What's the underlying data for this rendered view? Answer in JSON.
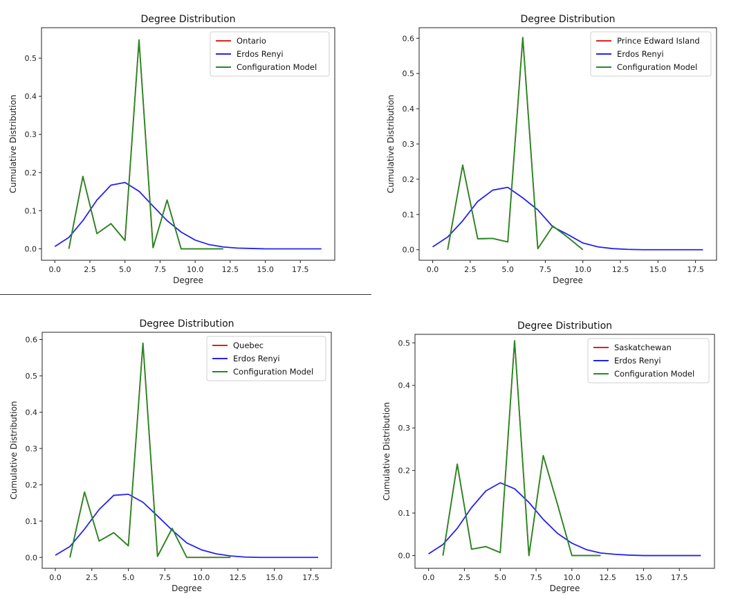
{
  "colors": {
    "province": "#e02020",
    "erdos_renyi": "#2222ee",
    "configuration": "#228b22"
  },
  "chart_data": [
    {
      "type": "line",
      "title": "Degree Distribution",
      "xlabel": "Degree",
      "ylabel": "Cumulative Distribution",
      "xlim": [
        -0.95,
        19.95
      ],
      "ylim": [
        -0.03,
        0.58
      ],
      "xticks": [
        0,
        2.5,
        5,
        7.5,
        10,
        12.5,
        15,
        17.5
      ],
      "xtick_labels": [
        "0.0",
        "2.5",
        "5.0",
        "7.5",
        "10.0",
        "12.5",
        "15.0",
        "17.5"
      ],
      "yticks": [
        0,
        0.1,
        0.2,
        0.3,
        0.4,
        0.5
      ],
      "ytick_labels": [
        "0.0",
        "0.1",
        "0.2",
        "0.3",
        "0.4",
        "0.5"
      ],
      "legend": "top-right",
      "series": [
        {
          "name": "Ontario",
          "color": "#e02020",
          "x": [
            1,
            2,
            3,
            4,
            5,
            6,
            7,
            8,
            9,
            10,
            11,
            12
          ],
          "values": [
            0.0,
            0.19,
            0.04,
            0.066,
            0.022,
            0.548,
            0.003,
            0.128,
            0.0,
            0.0,
            0.0,
            0.0
          ]
        },
        {
          "name": "Erdos Renyi",
          "color": "#2222ee",
          "x": [
            0,
            1,
            2,
            3,
            4,
            5,
            6,
            7,
            8,
            9,
            10,
            11,
            12,
            13,
            14,
            15,
            16,
            17,
            18,
            19
          ],
          "values": [
            0.006,
            0.03,
            0.074,
            0.128,
            0.167,
            0.174,
            0.151,
            0.112,
            0.074,
            0.044,
            0.023,
            0.011,
            0.005,
            0.002,
            0.001,
            0.0,
            0.0,
            0.0,
            0.0,
            0.0
          ]
        },
        {
          "name": "Configuration Model",
          "color": "#228b22",
          "x": [
            1,
            2,
            3,
            4,
            5,
            6,
            7,
            8,
            9,
            10,
            11,
            12
          ],
          "values": [
            0.0,
            0.19,
            0.04,
            0.066,
            0.022,
            0.548,
            0.003,
            0.128,
            0.0,
            0.0,
            0.0,
            0.0
          ]
        }
      ]
    },
    {
      "type": "line",
      "title": "Degree Distribution",
      "xlabel": "Degree",
      "ylabel": "Cumulative Distribution",
      "xlim": [
        -0.9,
        18.9
      ],
      "ylim": [
        -0.03,
        0.63
      ],
      "xticks": [
        0,
        2.5,
        5,
        7.5,
        10,
        12.5,
        15,
        17.5
      ],
      "xtick_labels": [
        "0.0",
        "2.5",
        "5.0",
        "7.5",
        "10.0",
        "12.5",
        "15.0",
        "17.5"
      ],
      "yticks": [
        0,
        0.1,
        0.2,
        0.3,
        0.4,
        0.5,
        0.6
      ],
      "ytick_labels": [
        "0.0",
        "0.1",
        "0.2",
        "0.3",
        "0.4",
        "0.5",
        "0.6"
      ],
      "legend": "top-right",
      "series": [
        {
          "name": "Prince Edward Island",
          "color": "#e02020",
          "x": [
            1,
            2,
            3,
            4,
            5,
            6,
            7,
            8,
            9,
            10
          ],
          "values": [
            0.0,
            0.24,
            0.031,
            0.032,
            0.022,
            0.602,
            0.003,
            0.067,
            0.035,
            0.0
          ]
        },
        {
          "name": "Erdos Renyi",
          "color": "#2222ee",
          "x": [
            0,
            1,
            2,
            3,
            4,
            5,
            6,
            7,
            8,
            9,
            10,
            11,
            12,
            13,
            14,
            15,
            16,
            17,
            18
          ],
          "values": [
            0.008,
            0.036,
            0.082,
            0.137,
            0.169,
            0.177,
            0.147,
            0.113,
            0.065,
            0.043,
            0.019,
            0.008,
            0.003,
            0.001,
            0.0,
            0.0,
            0.0,
            0.0,
            0.0
          ]
        },
        {
          "name": "Configuration Model",
          "color": "#228b22",
          "x": [
            1,
            2,
            3,
            4,
            5,
            6,
            7,
            8,
            9,
            10
          ],
          "values": [
            0.0,
            0.24,
            0.031,
            0.032,
            0.022,
            0.602,
            0.003,
            0.067,
            0.035,
            0.0
          ]
        }
      ]
    },
    {
      "type": "line",
      "title": "Degree Distribution",
      "xlabel": "Degree",
      "ylabel": "Cumulative Distribution",
      "xlim": [
        -0.9,
        18.9
      ],
      "ylim": [
        -0.03,
        0.62
      ],
      "xticks": [
        0,
        2.5,
        5,
        7.5,
        10,
        12.5,
        15,
        17.5
      ],
      "xtick_labels": [
        "0.0",
        "2.5",
        "5.0",
        "7.5",
        "10.0",
        "12.5",
        "15.0",
        "17.5"
      ],
      "yticks": [
        0,
        0.1,
        0.2,
        0.3,
        0.4,
        0.5,
        0.6
      ],
      "ytick_labels": [
        "0.0",
        "0.1",
        "0.2",
        "0.3",
        "0.4",
        "0.5",
        "0.6"
      ],
      "legend": "top-right",
      "series": [
        {
          "name": "Quebec",
          "color": "#e02020",
          "x": [
            1,
            2,
            3,
            4,
            5,
            6,
            7,
            8,
            9,
            10,
            11,
            12
          ],
          "values": [
            0.0,
            0.18,
            0.045,
            0.068,
            0.032,
            0.59,
            0.003,
            0.08,
            0.0,
            0.0,
            0.0,
            0.0
          ]
        },
        {
          "name": "Erdos Renyi",
          "color": "#2222ee",
          "x": [
            0,
            1,
            2,
            3,
            4,
            5,
            6,
            7,
            8,
            9,
            10,
            11,
            12,
            13,
            14,
            15,
            16,
            17,
            18
          ],
          "values": [
            0.006,
            0.03,
            0.078,
            0.132,
            0.171,
            0.174,
            0.152,
            0.114,
            0.075,
            0.04,
            0.021,
            0.01,
            0.004,
            0.001,
            0.0,
            0.0,
            0.0,
            0.0,
            0.0
          ]
        },
        {
          "name": "Configuration Model",
          "color": "#228b22",
          "x": [
            1,
            2,
            3,
            4,
            5,
            6,
            7,
            8,
            9,
            10,
            11,
            12
          ],
          "values": [
            0.0,
            0.18,
            0.045,
            0.068,
            0.032,
            0.59,
            0.003,
            0.08,
            0.0,
            0.0,
            0.0,
            0.0
          ]
        }
      ]
    },
    {
      "type": "line",
      "title": "Degree Distribution",
      "xlabel": "Degree",
      "ylabel": "Cumulative Distribution",
      "xlim": [
        -0.95,
        19.95
      ],
      "ylim": [
        -0.03,
        0.52
      ],
      "xticks": [
        0,
        2.5,
        5,
        7.5,
        10,
        12.5,
        15,
        17.5
      ],
      "xtick_labels": [
        "0.0",
        "2.5",
        "5.0",
        "7.5",
        "10.0",
        "12.5",
        "15.0",
        "17.5"
      ],
      "yticks": [
        0,
        0.1,
        0.2,
        0.3,
        0.4,
        0.5
      ],
      "ytick_labels": [
        "0.0",
        "0.1",
        "0.2",
        "0.3",
        "0.4",
        "0.5"
      ],
      "legend": "top-right",
      "series": [
        {
          "name": "Saskatchewan",
          "color": "#e02020",
          "x": [
            1,
            2,
            3,
            4,
            5,
            6,
            7,
            8,
            9,
            10,
            11,
            12
          ],
          "values": [
            0.0,
            0.215,
            0.015,
            0.021,
            0.007,
            0.505,
            0.0,
            0.235,
            0.12,
            0.0,
            0.0,
            0.0
          ]
        },
        {
          "name": "Erdos Renyi",
          "color": "#2222ee",
          "x": [
            0,
            1,
            2,
            3,
            4,
            5,
            6,
            7,
            8,
            9,
            10,
            11,
            12,
            13,
            14,
            15,
            16,
            17,
            18,
            19
          ],
          "values": [
            0.004,
            0.026,
            0.064,
            0.113,
            0.152,
            0.171,
            0.157,
            0.125,
            0.085,
            0.052,
            0.029,
            0.014,
            0.006,
            0.003,
            0.001,
            0.0,
            0.0,
            0.0,
            0.0,
            0.0
          ]
        },
        {
          "name": "Configuration Model",
          "color": "#228b22",
          "x": [
            1,
            2,
            3,
            4,
            5,
            6,
            7,
            8,
            9,
            10,
            11,
            12
          ],
          "values": [
            0.0,
            0.215,
            0.015,
            0.021,
            0.007,
            0.505,
            0.0,
            0.235,
            0.12,
            0.0,
            0.0,
            0.0
          ]
        }
      ]
    }
  ]
}
